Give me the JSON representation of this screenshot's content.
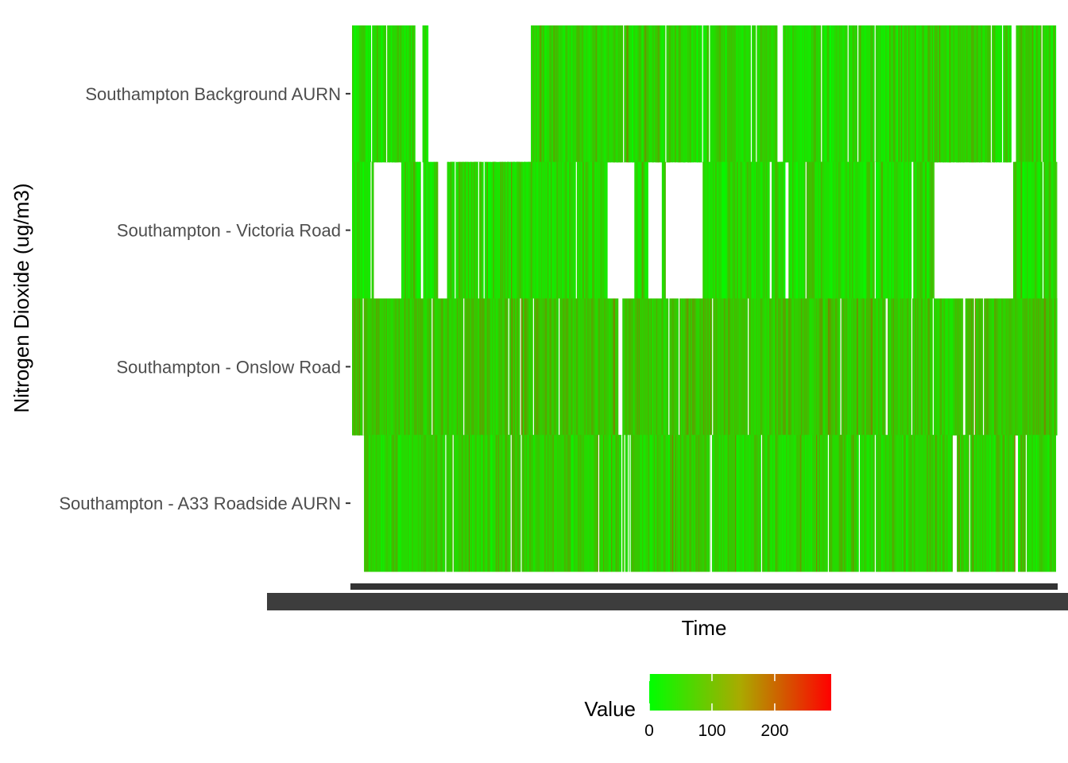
{
  "chart_data": {
    "type": "heatmap",
    "title": "",
    "xlabel": "Time",
    "ylabel": "Nitrogen Dioxide (ug/m3)",
    "categories": [
      "Southampton Background AURN",
      "Southampton - Victoria Road",
      "Southampton - Onslow Road",
      "Southampton - A33 Roadside AURN"
    ],
    "x_range": [
      0,
      1
    ],
    "x_tick_labels": "overlapping, illegible",
    "missing_data_spans": [
      {
        "site": "Southampton Background AURN",
        "gaps": [
          [
            0.09,
            0.1
          ],
          [
            0.107,
            0.254
          ],
          [
            0.604,
            0.612
          ],
          [
            0.936,
            0.943
          ]
        ]
      },
      {
        "site": "Southampton - Victoria Road",
        "gaps": [
          [
            0.031,
            0.07
          ],
          [
            0.097,
            0.101
          ],
          [
            0.121,
            0.135
          ],
          [
            0.363,
            0.401
          ],
          [
            0.42,
            0.44
          ],
          [
            0.445,
            0.498
          ],
          [
            0.614,
            0.62
          ],
          [
            0.826,
            0.939
          ]
        ]
      },
      {
        "site": "Southampton - Onslow Road",
        "gaps": [
          [
            0.378,
            0.384
          ],
          [
            0.866,
            0.871
          ]
        ]
      },
      {
        "site": "Southampton - A33 Roadside AURN",
        "gaps": [
          [
            0.0,
            0.017
          ],
          [
            0.853,
            0.859
          ],
          [
            0.941,
            0.946
          ]
        ]
      }
    ],
    "typical_value": [
      35,
      32,
      55,
      42
    ],
    "legend": {
      "title": "Value",
      "position": "bottom",
      "min": 0,
      "max": 290,
      "ticks": [
        "0",
        "100",
        "200"
      ],
      "tick_values": [
        0,
        100,
        200
      ],
      "color_low": "#00ff00",
      "color_high": "#ff0000"
    },
    "grid": false
  }
}
